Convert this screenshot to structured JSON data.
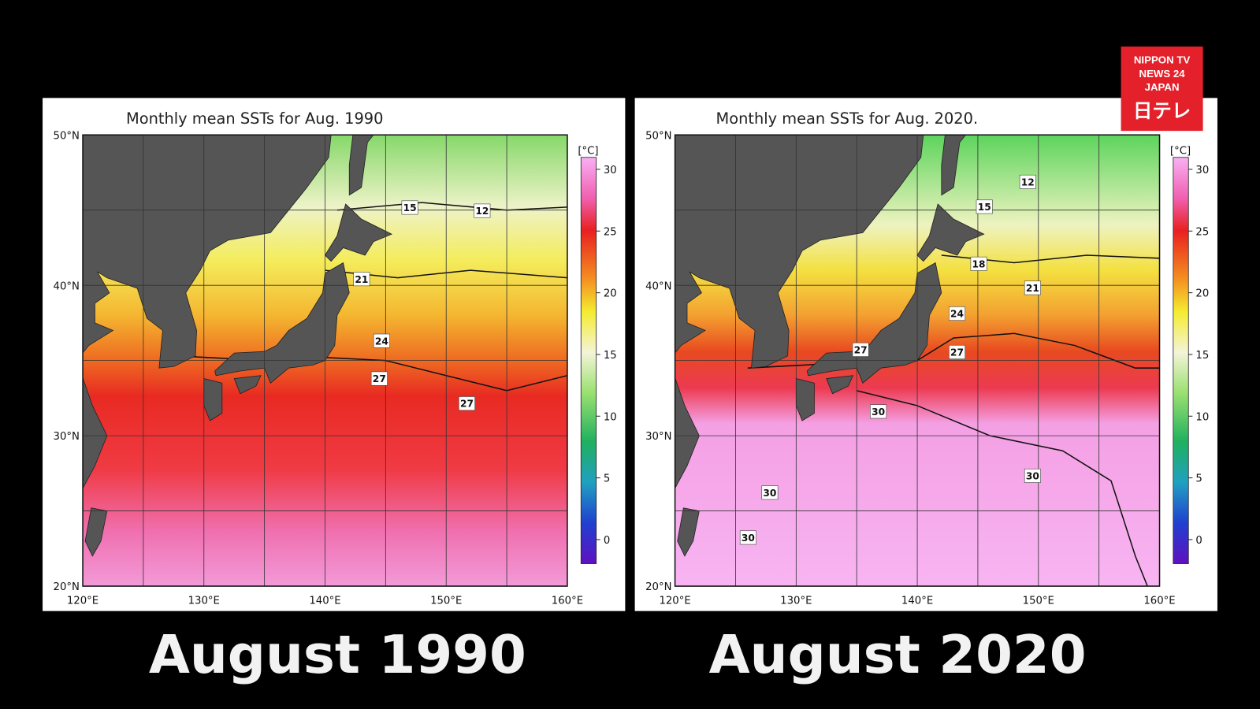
{
  "panels": [
    {
      "title": "Monthly mean SSTs for Aug. 1990",
      "lat_labels": [
        "50°N",
        "40°N",
        "30°N",
        "20°N"
      ],
      "lon_labels": [
        "120°E",
        "130°E",
        "140°E",
        "150°E",
        "160°E"
      ],
      "colorbar": {
        "unit": "[°C]",
        "ticks": [
          30,
          25,
          20,
          15,
          10,
          5,
          0
        ]
      },
      "contour_labels": [
        15,
        12,
        21,
        24,
        27,
        27
      ],
      "caption": "August 1990"
    },
    {
      "title": "Monthly mean SSTs for Aug. 2020.",
      "lat_labels": [
        "50°N",
        "40°N",
        "30°N",
        "20°N"
      ],
      "lon_labels": [
        "120°E",
        "130°E",
        "140°E",
        "150°E",
        "160°E"
      ],
      "colorbar": {
        "unit": "[°C]",
        "ticks": [
          30,
          25,
          20,
          15,
          10,
          5,
          0
        ]
      },
      "contour_labels": [
        12,
        15,
        18,
        21,
        24,
        27,
        27,
        30,
        30,
        30,
        30
      ],
      "caption": "August 2020"
    }
  ],
  "logo": {
    "lines": [
      "NIPPON TV",
      "NEWS 24",
      "JAPAN"
    ],
    "mark": "日テレ"
  }
}
